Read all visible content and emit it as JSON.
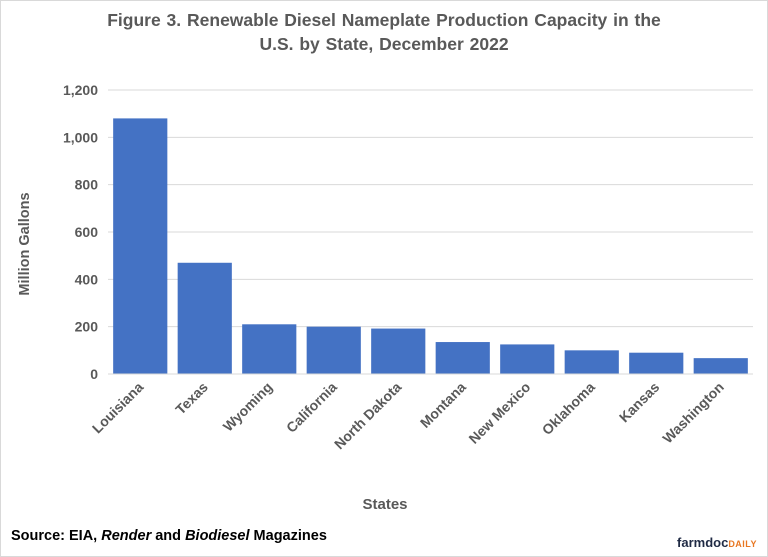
{
  "title": {
    "line1": "Figure 3. Renewable Diesel Nameplate Production Capacity in the",
    "line2": "U.S. by State, December 2022"
  },
  "source": {
    "prefix": "Source: EIA, ",
    "render": "Render",
    "and": " and ",
    "biodiesel": "Biodiesel",
    "suffix": " Magazines"
  },
  "logo": {
    "main": "farmdoc",
    "sub": "DAILY"
  },
  "colors": {
    "bar": "#4472c4",
    "grid": "#d9d9d9",
    "text": "#595959"
  },
  "chart_data": {
    "type": "bar",
    "title": "Figure 3. Renewable Diesel Nameplate Production Capacity in the U.S. by State, December 2022",
    "xlabel": "States",
    "ylabel": "Million Gallons",
    "categories": [
      "Louisiana",
      "Texas",
      "Wyoming",
      "California",
      "North Dakota",
      "Montana",
      "New Mexico",
      "Oklahoma",
      "Kansas",
      "Washington"
    ],
    "values": [
      1080,
      470,
      210,
      200,
      192,
      135,
      125,
      100,
      90,
      67
    ],
    "ylim": [
      0,
      1200
    ],
    "yticks": [
      0,
      200,
      400,
      600,
      800,
      1000,
      1200
    ],
    "ytick_labels": [
      "0",
      "200",
      "400",
      "600",
      "800",
      "1,000",
      "1,200"
    ],
    "grid": true,
    "legend": "none"
  }
}
